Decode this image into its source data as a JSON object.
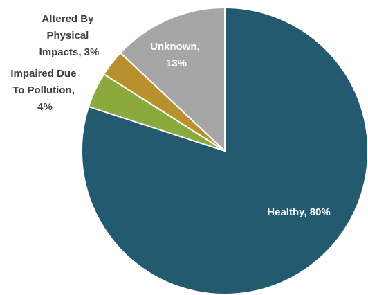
{
  "chart_data": {
    "type": "pie",
    "values": [
      80,
      4,
      3,
      13
    ],
    "value_labels": [
      "Healthy, 80%",
      "Impaired Due To Pollution, 4%",
      "Altered By Physical Impacts, 3%",
      "Unknown, 13%"
    ],
    "colors": [
      "#245a70",
      "#8aaa3e",
      "#b8902e",
      "#a6a6a6"
    ]
  }
}
